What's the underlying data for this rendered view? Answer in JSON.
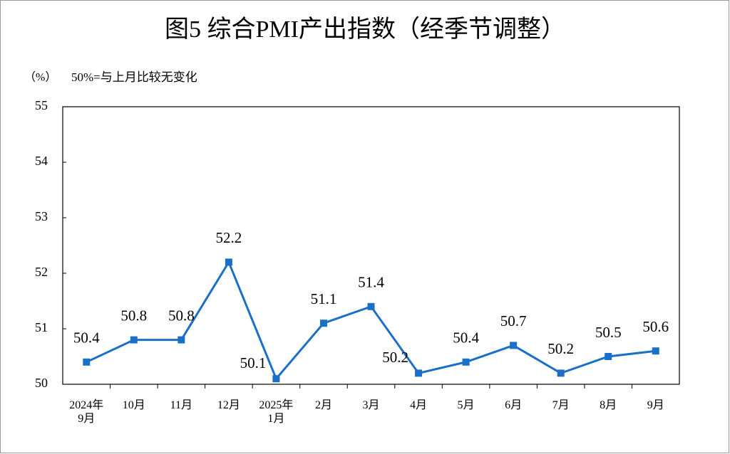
{
  "chart_data": {
    "type": "line",
    "title": "图5  综合PMI产出指数（经季节调整）",
    "y_label": "（%）",
    "annotation": "50%=与上月比较无变化",
    "categories": [
      "2024年\n9月",
      "10月",
      "11月",
      "12月",
      "2025年\n1月",
      "2月",
      "3月",
      "4月",
      "5月",
      "6月",
      "7月",
      "8月",
      "9月"
    ],
    "values": [
      50.4,
      50.8,
      50.8,
      52.2,
      50.1,
      51.1,
      51.4,
      50.2,
      50.4,
      50.7,
      50.2,
      50.5,
      50.6
    ],
    "color": "#1a6fc9",
    "ylim": [
      50,
      55
    ],
    "yticks": [
      50,
      51,
      52,
      53,
      54,
      55
    ],
    "grid": false
  }
}
